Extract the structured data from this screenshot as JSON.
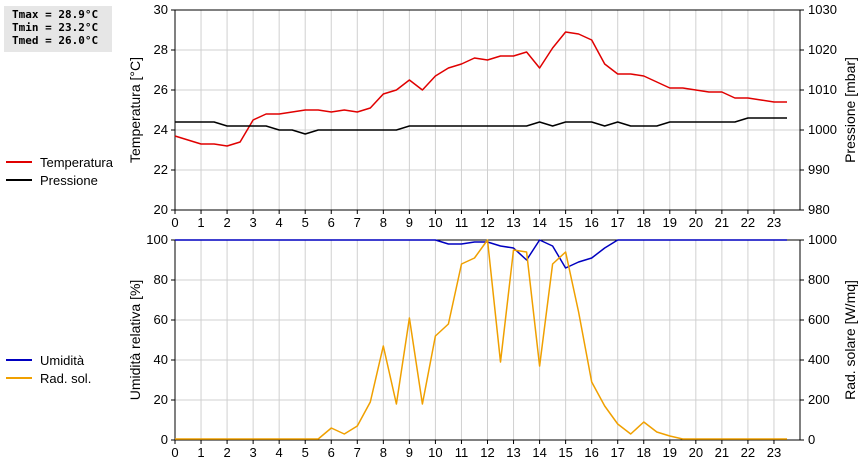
{
  "stats": {
    "tmax": "Tmax = 28.9°C",
    "tmin": "Tmin = 23.2°C",
    "tmed": "Tmed = 26.0°C"
  },
  "legend_top": [
    {
      "label": "Temperatura",
      "color": "#e00000"
    },
    {
      "label": "Pressione",
      "color": "#000000"
    }
  ],
  "legend_bottom": [
    {
      "label": "Umidità",
      "color": "#0000c0"
    },
    {
      "label": "Rad. sol.",
      "color": "#f0a000"
    }
  ],
  "chart_data": [
    {
      "type": "line",
      "xlabel": "",
      "xticks": [
        0,
        1,
        2,
        3,
        4,
        5,
        6,
        7,
        8,
        9,
        10,
        11,
        12,
        13,
        14,
        15,
        16,
        17,
        18,
        19,
        20,
        21,
        22,
        23
      ],
      "xlim": [
        0,
        24
      ],
      "grid": true,
      "left_axis": {
        "label": "Temperatura [°C]",
        "lim": [
          20,
          30
        ],
        "ticks": [
          20,
          22,
          24,
          26,
          28,
          30
        ]
      },
      "right_axis": {
        "label": "Pressione [mbar]",
        "lim": [
          980,
          1030
        ],
        "ticks": [
          980,
          990,
          1000,
          1010,
          1020,
          1030
        ]
      },
      "series": [
        {
          "name": "Temperatura",
          "axis": "left",
          "color": "#e00000",
          "x": [
            0,
            0.5,
            1,
            1.5,
            2,
            2.5,
            3,
            3.5,
            4,
            4.5,
            5,
            5.5,
            6,
            6.5,
            7,
            7.5,
            8,
            8.5,
            9,
            9.5,
            10,
            10.5,
            11,
            11.5,
            12,
            12.5,
            13,
            13.5,
            14,
            14.5,
            15,
            15.5,
            16,
            16.5,
            17,
            17.5,
            18,
            18.5,
            19,
            19.5,
            20,
            20.5,
            21,
            21.5,
            22,
            22.5,
            23,
            23.5
          ],
          "y": [
            23.7,
            23.5,
            23.3,
            23.3,
            23.2,
            23.4,
            24.5,
            24.8,
            24.8,
            24.9,
            25.0,
            25.0,
            24.9,
            25.0,
            24.9,
            25.1,
            25.8,
            26.0,
            26.5,
            26.0,
            26.7,
            27.1,
            27.3,
            27.6,
            27.5,
            27.7,
            27.7,
            27.9,
            27.1,
            28.1,
            28.9,
            28.8,
            28.5,
            27.3,
            26.8,
            26.8,
            26.7,
            26.4,
            26.1,
            26.1,
            26.0,
            25.9,
            25.9,
            25.6,
            25.6,
            25.5,
            25.4,
            25.4
          ]
        },
        {
          "name": "Pressione",
          "axis": "right",
          "color": "#000000",
          "x": [
            0,
            0.5,
            1,
            1.5,
            2,
            2.5,
            3,
            3.5,
            4,
            4.5,
            5,
            5.5,
            6,
            6.5,
            7,
            7.5,
            8,
            8.5,
            9,
            9.5,
            10,
            10.5,
            11,
            11.5,
            12,
            12.5,
            13,
            13.5,
            14,
            14.5,
            15,
            15.5,
            16,
            16.5,
            17,
            17.5,
            18,
            18.5,
            19,
            19.5,
            20,
            20.5,
            21,
            21.5,
            22,
            22.5,
            23,
            23.5
          ],
          "y": [
            1002,
            1002,
            1002,
            1002,
            1001,
            1001,
            1001,
            1001,
            1000,
            1000,
            999,
            1000,
            1000,
            1000,
            1000,
            1000,
            1000,
            1000,
            1001,
            1001,
            1001,
            1001,
            1001,
            1001,
            1001,
            1001,
            1001,
            1001,
            1002,
            1001,
            1002,
            1002,
            1002,
            1001,
            1002,
            1001,
            1001,
            1001,
            1002,
            1002,
            1002,
            1002,
            1002,
            1002,
            1003,
            1003,
            1003,
            1003
          ]
        }
      ]
    },
    {
      "type": "line",
      "xlabel": "",
      "xticks": [
        0,
        1,
        2,
        3,
        4,
        5,
        6,
        7,
        8,
        9,
        10,
        11,
        12,
        13,
        14,
        15,
        16,
        17,
        18,
        19,
        20,
        21,
        22,
        23
      ],
      "xlim": [
        0,
        24
      ],
      "grid": true,
      "left_axis": {
        "label": "Umidità relativa [%]",
        "lim": [
          0,
          100
        ],
        "ticks": [
          0,
          20,
          40,
          60,
          80,
          100
        ]
      },
      "right_axis": {
        "label": "Rad. solare [W/mq]",
        "lim": [
          0,
          1000
        ],
        "ticks": [
          0,
          200,
          400,
          600,
          800,
          1000
        ]
      },
      "series": [
        {
          "name": "Umidità",
          "axis": "left",
          "color": "#0000c0",
          "x": [
            0,
            0.5,
            1,
            1.5,
            2,
            2.5,
            3,
            3.5,
            4,
            4.5,
            5,
            5.5,
            6,
            6.5,
            7,
            7.5,
            8,
            8.5,
            9,
            9.5,
            10,
            10.5,
            11,
            11.5,
            12,
            12.5,
            13,
            13.5,
            14,
            14.5,
            15,
            15.5,
            16,
            16.5,
            17,
            17.5,
            18,
            18.5,
            19,
            19.5,
            20,
            20.5,
            21,
            21.5,
            22,
            22.5,
            23,
            23.5
          ],
          "y": [
            100,
            100,
            100,
            100,
            100,
            100,
            100,
            100,
            100,
            100,
            100,
            100,
            100,
            100,
            100,
            100,
            100,
            100,
            100,
            100,
            100,
            98,
            98,
            99,
            99,
            97,
            96,
            90,
            100,
            97,
            86,
            89,
            91,
            96,
            100,
            100,
            100,
            100,
            100,
            100,
            100,
            100,
            100,
            100,
            100,
            100,
            100,
            100
          ]
        },
        {
          "name": "Rad. sol.",
          "axis": "right",
          "color": "#f0a000",
          "x": [
            0,
            0.5,
            1,
            1.5,
            2,
            2.5,
            3,
            3.5,
            4,
            4.5,
            5,
            5.5,
            6,
            6.5,
            7,
            7.5,
            8,
            8.5,
            9,
            9.5,
            10,
            10.5,
            11,
            11.5,
            12,
            12.5,
            13,
            13.5,
            14,
            14.5,
            15,
            15.5,
            16,
            16.5,
            17,
            17.5,
            18,
            18.5,
            19,
            19.5,
            20,
            20.5,
            21,
            21.5,
            22,
            22.5,
            23,
            23.5
          ],
          "y": [
            5,
            5,
            5,
            5,
            5,
            5,
            5,
            5,
            5,
            5,
            5,
            5,
            60,
            30,
            70,
            190,
            470,
            180,
            610,
            180,
            520,
            580,
            880,
            910,
            1000,
            390,
            950,
            940,
            370,
            880,
            940,
            640,
            290,
            170,
            80,
            30,
            90,
            40,
            20,
            5,
            5,
            5,
            5,
            5,
            5,
            5,
            5,
            5
          ]
        }
      ]
    }
  ]
}
